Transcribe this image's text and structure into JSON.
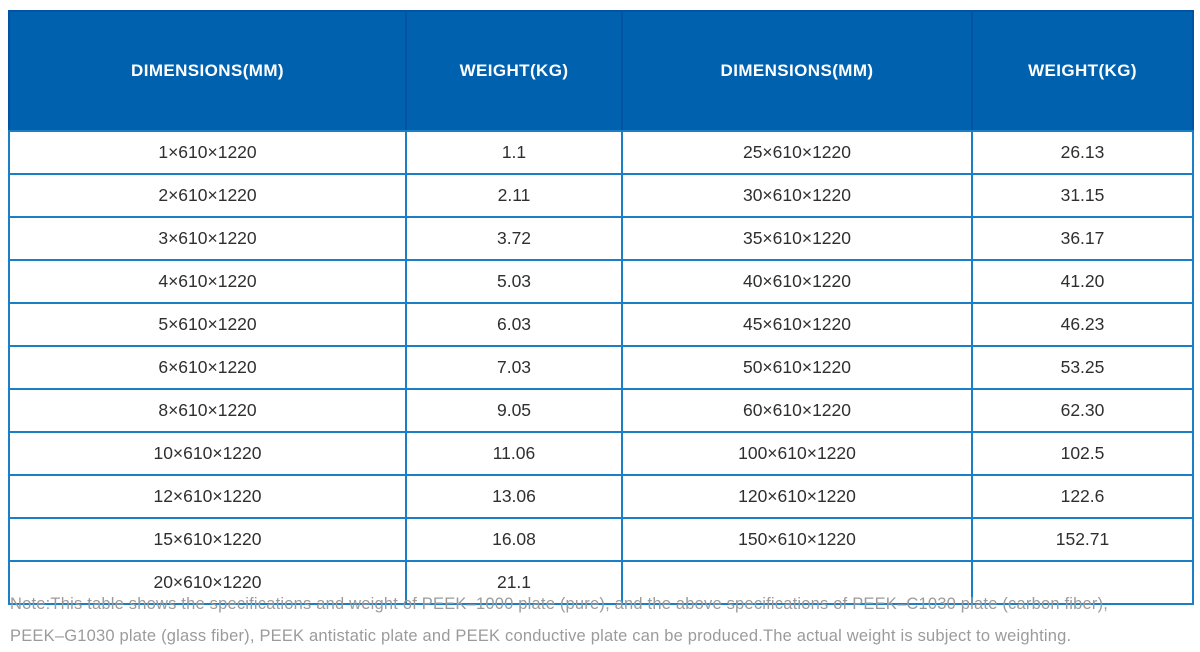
{
  "colors": {
    "header_bg": "#0061ae",
    "header_divider": "#0253a2",
    "grid_line": "#1a7fc5",
    "cell_text": "#2f2f2f",
    "note_text": "#9b9b9b"
  },
  "header": {
    "columns": [
      "DIMENSIONS(MM)",
      "WEIGHT(KG)",
      "DIMENSIONS(MM)",
      "WEIGHT(KG)"
    ]
  },
  "table": {
    "rows": [
      [
        "1×610×1220",
        "1.1",
        "25×610×1220",
        "26.13"
      ],
      [
        "2×610×1220",
        "2.11",
        "30×610×1220",
        "31.15"
      ],
      [
        "3×610×1220",
        "3.72",
        "35×610×1220",
        "36.17"
      ],
      [
        "4×610×1220",
        "5.03",
        "40×610×1220",
        "41.20"
      ],
      [
        "5×610×1220",
        "6.03",
        "45×610×1220",
        "46.23"
      ],
      [
        "6×610×1220",
        "7.03",
        "50×610×1220",
        "53.25"
      ],
      [
        "8×610×1220",
        "9.05",
        "60×610×1220",
        "62.30"
      ],
      [
        "10×610×1220",
        "11.06",
        "100×610×1220",
        "102.5"
      ],
      [
        "12×610×1220",
        "13.06",
        "120×610×1220",
        "122.6"
      ],
      [
        "15×610×1220",
        "16.08",
        "150×610×1220",
        "152.71"
      ],
      [
        "20×610×1220",
        "21.1",
        "",
        ""
      ]
    ]
  },
  "note": {
    "line1": "Note:This table shows the specifications and weight of PEEK–1000 plate (pure), and the above specifications of PEEK–C1030 plate (carbon fiber),",
    "line2": "PEEK–G1030 plate (glass fiber), PEEK antistatic plate and PEEK conductive plate can be produced.The actual weight is subject to weighting."
  }
}
